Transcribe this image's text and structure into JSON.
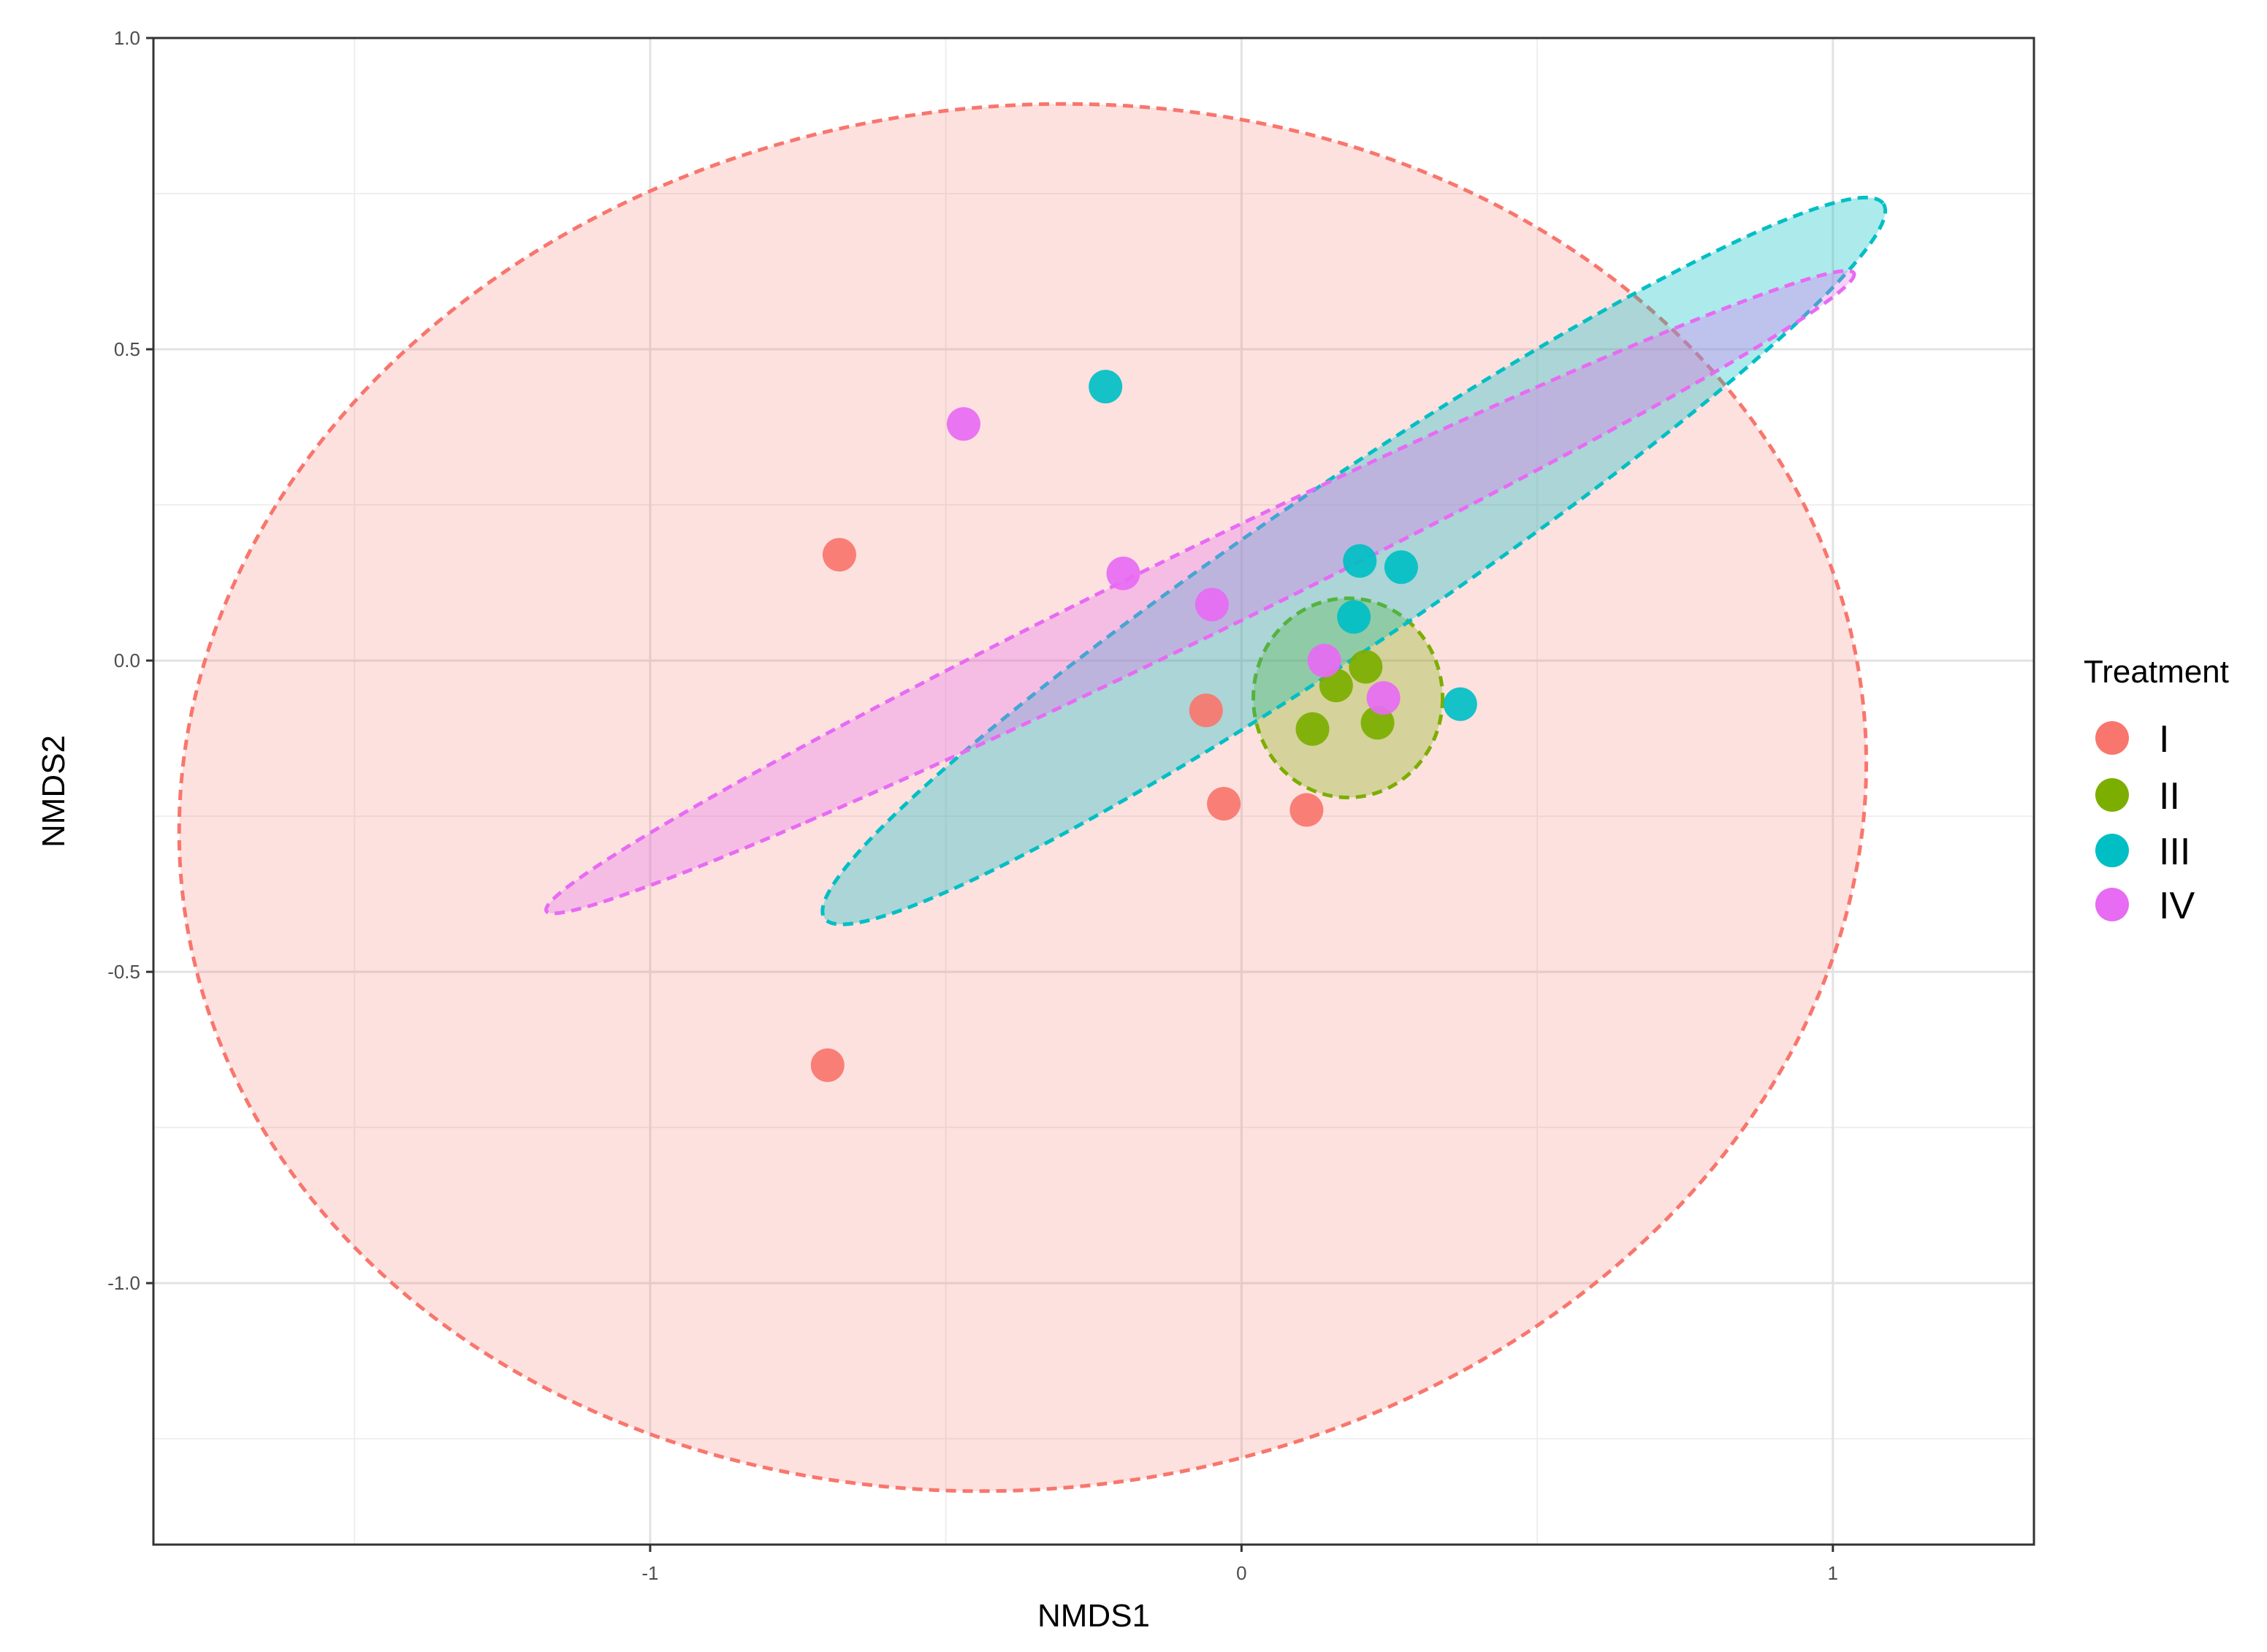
{
  "chart_data": {
    "type": "scatter",
    "title": "",
    "xlabel": "NMDS1",
    "ylabel": "NMDS2",
    "xlim": [
      -1.84,
      1.34
    ],
    "ylim": [
      -1.42,
      1.0
    ],
    "x_ticks": [
      {
        "value": -1,
        "label": "-1"
      },
      {
        "value": 0,
        "label": "0"
      },
      {
        "value": 1,
        "label": "1"
      }
    ],
    "y_ticks": [
      {
        "value": 1.0,
        "label": "1.0"
      },
      {
        "value": 0.5,
        "label": "0.5"
      },
      {
        "value": 0.0,
        "label": "0.0"
      },
      {
        "value": -0.5,
        "label": "-0.5"
      },
      {
        "value": -1.0,
        "label": "-1.0"
      }
    ],
    "grid": true,
    "legend": {
      "title": "Treatment",
      "position": "right"
    },
    "series": [
      {
        "name": "I",
        "color": "#f8766d",
        "points": [
          {
            "x": -0.68,
            "y": 0.17
          },
          {
            "x": -0.7,
            "y": -0.65
          },
          {
            "x": -0.06,
            "y": -0.08
          },
          {
            "x": -0.03,
            "y": -0.23
          },
          {
            "x": 0.11,
            "y": -0.24
          }
        ],
        "ellipse": {
          "cx": -0.37,
          "cy": -0.22,
          "rx": 1.43,
          "ry": 1.11,
          "angle_deg": -7
        }
      },
      {
        "name": "II",
        "color": "#7cae00",
        "points": [
          {
            "x": 0.16,
            "y": -0.04
          },
          {
            "x": 0.21,
            "y": -0.01
          },
          {
            "x": 0.12,
            "y": -0.11
          },
          {
            "x": 0.23,
            "y": -0.1
          }
        ],
        "ellipse": {
          "cx": 0.18,
          "cy": -0.06,
          "rx": 0.16,
          "ry": 0.16,
          "angle_deg": 0
        }
      },
      {
        "name": "III",
        "color": "#00bfc4",
        "points": [
          {
            "x": -0.23,
            "y": 0.44
          },
          {
            "x": 0.2,
            "y": 0.16
          },
          {
            "x": 0.27,
            "y": 0.15
          },
          {
            "x": 0.19,
            "y": 0.07
          },
          {
            "x": 0.37,
            "y": -0.07
          }
        ],
        "ellipse": {
          "cx": 0.19,
          "cy": 0.16,
          "rx": 1.08,
          "ry": 0.13,
          "angle_deg": -34
        }
      },
      {
        "name": "IV",
        "color": "#e76bf3",
        "points": [
          {
            "x": -0.47,
            "y": 0.38
          },
          {
            "x": -0.2,
            "y": 0.14
          },
          {
            "x": -0.05,
            "y": 0.09
          },
          {
            "x": 0.14,
            "y": 0.0
          },
          {
            "x": 0.24,
            "y": -0.06
          }
        ],
        "ellipse": {
          "cx": -0.07,
          "cy": 0.11,
          "rx": 1.23,
          "ry": 0.07,
          "angle_deg": -26
        }
      }
    ]
  }
}
